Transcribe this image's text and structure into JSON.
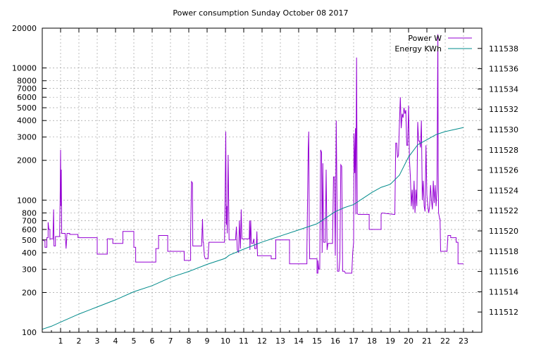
{
  "chart_data": {
    "type": "line",
    "title": "Power consumption Sunday October 08 2017",
    "xlabel": "",
    "ylabel": "",
    "y2label": "",
    "grid": true,
    "legend_placement": "top-right",
    "x_range": [
      0,
      24
    ],
    "x_ticks": [
      "1",
      "2",
      "3",
      "4",
      "5",
      "6",
      "7",
      "8",
      "9",
      "10",
      "11",
      "12",
      "13",
      "14",
      "15",
      "16",
      "17",
      "18",
      "19",
      "20",
      "21",
      "22",
      "23"
    ],
    "y_scale": "log",
    "y_range": [
      100,
      20000
    ],
    "y_ticks": [
      "100",
      "200",
      "300",
      "400",
      "500",
      "600",
      "700",
      "800",
      "1000",
      "2000",
      "3000",
      "4000",
      "5000",
      "6000",
      "7000",
      "8000",
      "10000",
      "20000"
    ],
    "y2_range": [
      111510,
      111540
    ],
    "y2_ticks": [
      "111512",
      "111514",
      "111516",
      "111518",
      "111520",
      "111522",
      "111524",
      "111526",
      "111528",
      "111530",
      "111532",
      "111534",
      "111536",
      "111538"
    ],
    "series": [
      {
        "name": "Power W",
        "axis": "left",
        "color": "#9400d3",
        "points": [
          [
            0,
            500
          ],
          [
            0.15,
            490
          ],
          [
            0.15,
            440
          ],
          [
            0.25,
            440
          ],
          [
            0.25,
            520
          ],
          [
            0.32,
            520
          ],
          [
            0.32,
            680
          ],
          [
            0.36,
            600
          ],
          [
            0.42,
            600
          ],
          [
            0.42,
            510
          ],
          [
            0.58,
            510
          ],
          [
            0.62,
            850
          ],
          [
            0.64,
            450
          ],
          [
            0.72,
            450
          ],
          [
            0.72,
            530
          ],
          [
            0.95,
            530
          ],
          [
            0.98,
            1200
          ],
          [
            1.0,
            2400
          ],
          [
            1.02,
            900
          ],
          [
            1.04,
            1700
          ],
          [
            1.06,
            560
          ],
          [
            1.2,
            560
          ],
          [
            1.25,
            560
          ],
          [
            1.3,
            430
          ],
          [
            1.35,
            560
          ],
          [
            1.5,
            560
          ],
          [
            1.5,
            550
          ],
          [
            1.95,
            550
          ],
          [
            1.95,
            520
          ],
          [
            3.0,
            520
          ],
          [
            3.0,
            390
          ],
          [
            3.55,
            390
          ],
          [
            3.55,
            510
          ],
          [
            3.85,
            510
          ],
          [
            3.85,
            470
          ],
          [
            4.4,
            470
          ],
          [
            4.4,
            580
          ],
          [
            5.0,
            580
          ],
          [
            5.0,
            440
          ],
          [
            5.1,
            440
          ],
          [
            5.1,
            340
          ],
          [
            6.2,
            340
          ],
          [
            6.2,
            430
          ],
          [
            6.35,
            430
          ],
          [
            6.35,
            540
          ],
          [
            6.85,
            540
          ],
          [
            6.85,
            410
          ],
          [
            7.75,
            410
          ],
          [
            7.75,
            350
          ],
          [
            8.1,
            350
          ],
          [
            8.1,
            560
          ],
          [
            8.15,
            1380
          ],
          [
            8.2,
            1350
          ],
          [
            8.22,
            450
          ],
          [
            8.7,
            450
          ],
          [
            8.75,
            720
          ],
          [
            8.78,
            480
          ],
          [
            8.8,
            480
          ],
          [
            8.85,
            380
          ],
          [
            8.9,
            360
          ],
          [
            8.95,
            360
          ],
          [
            9.05,
            360
          ],
          [
            9.1,
            480
          ],
          [
            9.95,
            480
          ],
          [
            9.98,
            1000
          ],
          [
            10.02,
            3300
          ],
          [
            10.05,
            650
          ],
          [
            10.08,
            900
          ],
          [
            10.1,
            560
          ],
          [
            10.15,
            2200
          ],
          [
            10.2,
            500
          ],
          [
            10.55,
            500
          ],
          [
            10.6,
            630
          ],
          [
            10.65,
            420
          ],
          [
            10.72,
            400
          ],
          [
            10.76,
            700
          ],
          [
            10.82,
            430
          ],
          [
            10.86,
            850
          ],
          [
            10.9,
            510
          ],
          [
            11.3,
            510
          ],
          [
            11.32,
            700
          ],
          [
            11.34,
            420
          ],
          [
            11.38,
            700
          ],
          [
            11.42,
            470
          ],
          [
            11.5,
            470
          ],
          [
            11.55,
            510
          ],
          [
            11.6,
            430
          ],
          [
            11.68,
            430
          ],
          [
            11.72,
            580
          ],
          [
            11.75,
            380
          ],
          [
            12.5,
            380
          ],
          [
            12.5,
            360
          ],
          [
            12.75,
            360
          ],
          [
            12.75,
            500
          ],
          [
            13.5,
            500
          ],
          [
            13.5,
            330
          ],
          [
            14.45,
            330
          ],
          [
            14.45,
            420
          ],
          [
            14.52,
            2400
          ],
          [
            14.55,
            3300
          ],
          [
            14.58,
            550
          ],
          [
            14.6,
            360
          ],
          [
            15.0,
            360
          ],
          [
            15.0,
            280
          ],
          [
            15.05,
            280
          ],
          [
            15.05,
            350
          ],
          [
            15.1,
            300
          ],
          [
            15.15,
            300
          ],
          [
            15.2,
            2400
          ],
          [
            15.25,
            2300
          ],
          [
            15.28,
            400
          ],
          [
            15.32,
            1900
          ],
          [
            15.36,
            480
          ],
          [
            15.45,
            480
          ],
          [
            15.5,
            1700
          ],
          [
            15.55,
            420
          ],
          [
            15.6,
            470
          ],
          [
            15.85,
            470
          ],
          [
            15.9,
            1500
          ],
          [
            15.95,
            1500
          ],
          [
            16.0,
            380
          ],
          [
            16.05,
            4000
          ],
          [
            16.1,
            800
          ],
          [
            16.12,
            290
          ],
          [
            16.2,
            290
          ],
          [
            16.25,
            360
          ],
          [
            16.3,
            1850
          ],
          [
            16.35,
            1800
          ],
          [
            16.4,
            290
          ],
          [
            16.5,
            290
          ],
          [
            16.55,
            280
          ],
          [
            16.9,
            280
          ],
          [
            16.95,
            400
          ],
          [
            17.0,
            480
          ],
          [
            17.02,
            3200
          ],
          [
            17.06,
            1600
          ],
          [
            17.1,
            3500
          ],
          [
            17.12,
            780
          ],
          [
            17.16,
            12000
          ],
          [
            17.2,
            790
          ],
          [
            17.25,
            780
          ],
          [
            17.85,
            780
          ],
          [
            17.85,
            600
          ],
          [
            18.5,
            600
          ],
          [
            18.5,
            780
          ],
          [
            18.55,
            800
          ],
          [
            19.2,
            780
          ],
          [
            19.25,
            780
          ],
          [
            19.3,
            2700
          ],
          [
            19.35,
            2700
          ],
          [
            19.4,
            2100
          ],
          [
            19.45,
            2200
          ],
          [
            19.5,
            3800
          ],
          [
            19.55,
            6000
          ],
          [
            19.6,
            3500
          ],
          [
            19.65,
            4500
          ],
          [
            19.7,
            4200
          ],
          [
            19.75,
            5000
          ],
          [
            19.8,
            4500
          ],
          [
            19.85,
            4800
          ],
          [
            19.9,
            2600
          ],
          [
            19.95,
            2600
          ],
          [
            20.0,
            5200
          ],
          [
            20.05,
            2000
          ],
          [
            20.1,
            1500
          ],
          [
            20.15,
            900
          ],
          [
            20.2,
            1200
          ],
          [
            20.25,
            850
          ],
          [
            20.3,
            1400
          ],
          [
            20.35,
            800
          ],
          [
            20.4,
            1200
          ],
          [
            20.45,
            900
          ],
          [
            20.5,
            3900
          ],
          [
            20.55,
            2800
          ],
          [
            20.6,
            2800
          ],
          [
            20.65,
            2500
          ],
          [
            20.7,
            4000
          ],
          [
            20.75,
            1000
          ],
          [
            20.8,
            1400
          ],
          [
            20.85,
            900
          ],
          [
            20.9,
            820
          ],
          [
            20.95,
            2600
          ],
          [
            21.0,
            1100
          ],
          [
            21.05,
            900
          ],
          [
            21.1,
            800
          ],
          [
            21.15,
            900
          ],
          [
            21.2,
            1300
          ],
          [
            21.25,
            1000
          ],
          [
            21.3,
            850
          ],
          [
            21.35,
            1400
          ],
          [
            21.4,
            950
          ],
          [
            21.45,
            1300
          ],
          [
            21.5,
            900
          ],
          [
            21.55,
            1200
          ],
          [
            21.6,
            18000
          ],
          [
            21.62,
            1600
          ],
          [
            21.64,
            800
          ],
          [
            21.7,
            720
          ],
          [
            21.72,
            720
          ],
          [
            21.75,
            410
          ],
          [
            22.1,
            410
          ],
          [
            22.15,
            540
          ],
          [
            22.3,
            540
          ],
          [
            22.3,
            520
          ],
          [
            22.6,
            520
          ],
          [
            22.6,
            480
          ],
          [
            22.7,
            480
          ],
          [
            22.7,
            330
          ],
          [
            23.0,
            330
          ]
        ]
      },
      {
        "name": "Energy KWh",
        "axis": "right",
        "color": "#008b8b",
        "points": [
          [
            0,
            111510.3
          ],
          [
            0.5,
            111510.6
          ],
          [
            1.0,
            111511.0
          ],
          [
            2.0,
            111511.8
          ],
          [
            3.0,
            111512.5
          ],
          [
            4.0,
            111513.2
          ],
          [
            5.0,
            111514.0
          ],
          [
            6.0,
            111514.6
          ],
          [
            7.0,
            111515.4
          ],
          [
            8.0,
            111516.0
          ],
          [
            9.0,
            111516.7
          ],
          [
            10.0,
            111517.3
          ],
          [
            10.2,
            111517.6
          ],
          [
            11.0,
            111518.2
          ],
          [
            12.0,
            111518.9
          ],
          [
            13.0,
            111519.5
          ],
          [
            14.0,
            111520.1
          ],
          [
            15.0,
            111520.7
          ],
          [
            15.5,
            111521.3
          ],
          [
            16.0,
            111521.9
          ],
          [
            16.5,
            111522.3
          ],
          [
            17.0,
            111522.6
          ],
          [
            17.5,
            111523.2
          ],
          [
            18.0,
            111523.8
          ],
          [
            18.5,
            111524.3
          ],
          [
            19.0,
            111524.6
          ],
          [
            19.5,
            111525.5
          ],
          [
            20.0,
            111527.3
          ],
          [
            20.5,
            111528.5
          ],
          [
            21.0,
            111529.0
          ],
          [
            21.5,
            111529.5
          ],
          [
            22.0,
            111529.8
          ],
          [
            22.5,
            111530.0
          ],
          [
            23.0,
            111530.2
          ]
        ]
      }
    ]
  }
}
